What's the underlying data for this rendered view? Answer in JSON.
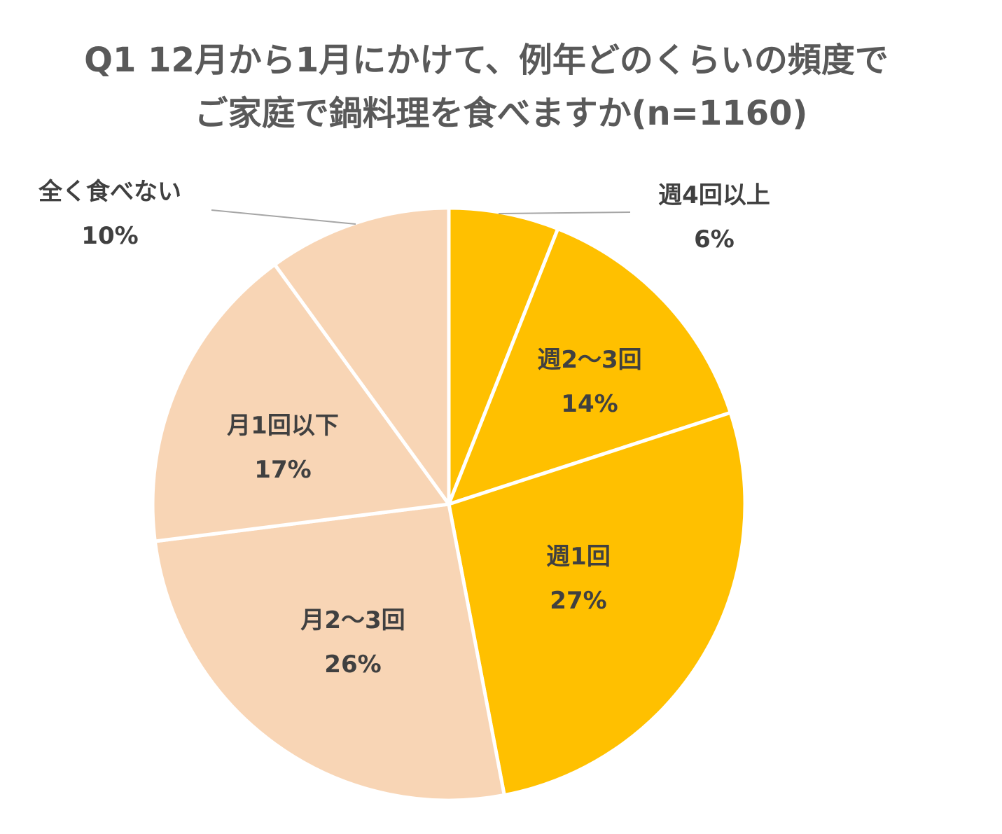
{
  "title": {
    "line1": "Q1 12月から1月にかけて、例年どのくらいの頻度で",
    "line2": "ご家庭で鍋料理を食べますか(n=1160)"
  },
  "chart_data": {
    "type": "pie",
    "title": "Q1 12月から1月にかけて、例年どのくらいの頻度でご家庭で鍋料理を食べますか(n=1160)",
    "start_angle": "12 o'clock",
    "direction": "clockwise",
    "slices": [
      {
        "label": "週4回以上",
        "value": 6,
        "display": "6%",
        "color": "#FFC000"
      },
      {
        "label": "週2～3回",
        "value": 14,
        "display": "14%",
        "color": "#FFC000"
      },
      {
        "label": "週1回",
        "value": 27,
        "display": "27%",
        "color": "#FFC000"
      },
      {
        "label": "月2～3回",
        "value": 26,
        "display": "26%",
        "color": "#F8D5B5"
      },
      {
        "label": "月1回以下",
        "value": 17,
        "display": "17%",
        "color": "#F8D5B5"
      },
      {
        "label": "全く食べない",
        "value": 10,
        "display": "10%",
        "color": "#F8D5B5"
      }
    ],
    "border_color": "#FFFFFF",
    "leader_line_color": "#A6A6A6"
  }
}
